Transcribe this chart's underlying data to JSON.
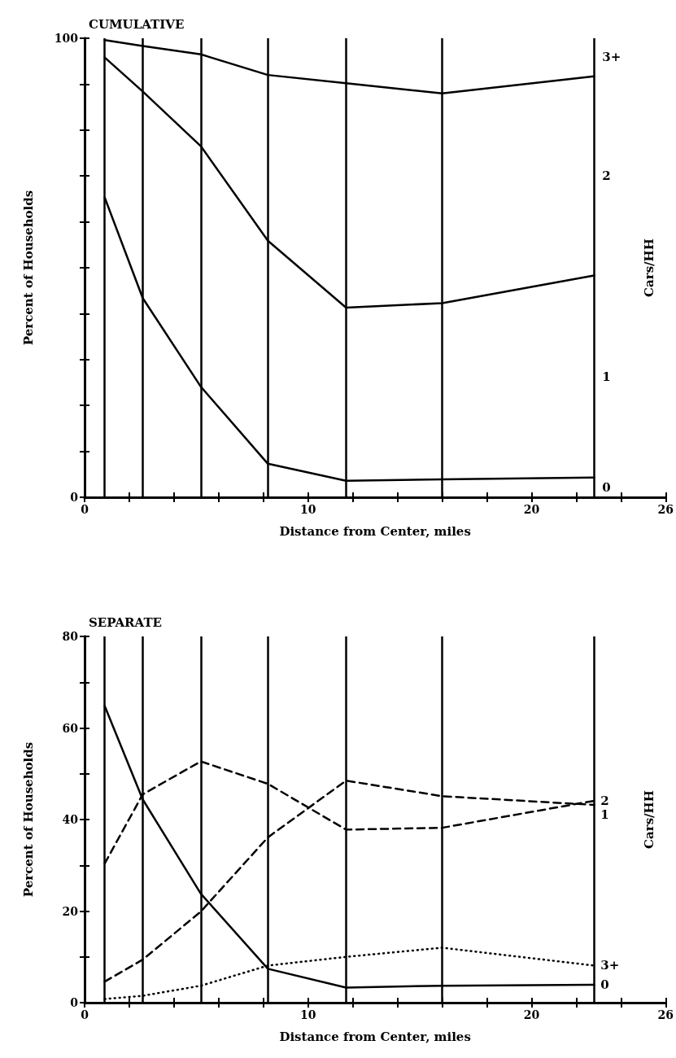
{
  "chart_data": [
    {
      "type": "line",
      "title": "CUMULATIVE",
      "xlabel": "Distance from Center, miles",
      "ylabel": "Percent of Households",
      "y2label": "Cars/HH",
      "x": [
        0.9,
        2.6,
        5.2,
        8.2,
        11.7,
        16.0,
        22.8
      ],
      "series": [
        {
          "color": "#000000",
          "values": [
            99.6,
            98.3,
            96.5,
            92.0,
            90.2,
            88.0,
            91.7
          ]
        },
        {
          "color": "#000000",
          "values": [
            95.8,
            88.4,
            76.5,
            55.9,
            41.3,
            42.3,
            48.3
          ]
        },
        {
          "color": "#000000",
          "values": [
            65.3,
            43.4,
            24.1,
            7.3,
            3.6,
            3.9,
            4.3
          ]
        }
      ],
      "xlim": [
        0,
        26
      ],
      "xticks": [
        0,
        {
          "value": 2,
          "label": null
        },
        {
          "value": 4,
          "label": null
        },
        {
          "value": 6,
          "label": null
        },
        {
          "value": 8,
          "label": null
        },
        10,
        {
          "value": 12,
          "label": null
        },
        {
          "value": 14,
          "label": null
        },
        {
          "value": 16,
          "label": null
        },
        {
          "value": 18,
          "label": null
        },
        20,
        {
          "value": 22,
          "label": null
        },
        {
          "value": 24,
          "label": null
        },
        26
      ],
      "ylim": [
        0,
        100
      ],
      "yticks": [
        0,
        {
          "value": 10,
          "label": null
        },
        {
          "value": 20,
          "label": null
        },
        {
          "value": 30,
          "label": null
        },
        {
          "value": 40,
          "label": null
        },
        {
          "value": 50,
          "label": null
        },
        {
          "value": 60,
          "label": null
        },
        {
          "value": 70,
          "label": null
        },
        {
          "value": 80,
          "label": null
        },
        {
          "value": 90,
          "label": null
        },
        100
      ],
      "ref_lines": [
        {
          "axis": "x",
          "value": 0.9,
          "color": "#000000"
        },
        {
          "axis": "x",
          "value": 2.6,
          "color": "#000000"
        },
        {
          "axis": "x",
          "value": 5.2,
          "color": "#000000"
        },
        {
          "axis": "x",
          "value": 8.2,
          "color": "#000000"
        },
        {
          "axis": "x",
          "value": 11.7,
          "color": "#000000"
        },
        {
          "axis": "x",
          "value": 16.0,
          "color": "#000000"
        },
        {
          "axis": "x",
          "value": 22.8,
          "color": "#000000"
        }
      ],
      "annotations": [
        "3+",
        "2",
        "1",
        "0"
      ],
      "line_style": "solid"
    },
    {
      "type": "line",
      "title": "SEPARATE",
      "xlabel": "Distance from Center, miles",
      "ylabel": "Percent of Households",
      "y2label": "Cars/HH",
      "x": [
        0.9,
        2.6,
        5.2,
        8.2,
        11.7,
        16.0,
        22.8
      ],
      "series": [
        {
          "name": "0",
          "color": "#000000",
          "line_style": "solid",
          "values": [
            64.8,
            44.4,
            23.8,
            7.4,
            3.3,
            3.7,
            3.9
          ]
        },
        {
          "name": "1",
          "color": "#000000",
          "line_style": "dashed",
          "values": [
            4.6,
            9.4,
            19.9,
            36.1,
            48.5,
            45.1,
            43.2
          ]
        },
        {
          "name": "2",
          "color": "#000000",
          "line_style": "dashed",
          "values": [
            30.4,
            45.5,
            52.7,
            47.8,
            37.8,
            38.2,
            44.1
          ]
        },
        {
          "name": "3+",
          "color": "#000000",
          "line_style": "dotted",
          "values": [
            0.8,
            1.5,
            3.7,
            8.1,
            10.0,
            12.0,
            8.1
          ]
        }
      ],
      "xlim": [
        0,
        26
      ],
      "xticks": [
        0,
        {
          "value": 2,
          "label": null
        },
        {
          "value": 4,
          "label": null
        },
        {
          "value": 6,
          "label": null
        },
        {
          "value": 8,
          "label": null
        },
        10,
        {
          "value": 12,
          "label": null
        },
        {
          "value": 14,
          "label": null
        },
        {
          "value": 16,
          "label": null
        },
        {
          "value": 18,
          "label": null
        },
        20,
        {
          "value": 22,
          "label": null
        },
        {
          "value": 24,
          "label": null
        },
        26
      ],
      "ylim": [
        0,
        80
      ],
      "yticks": [
        0,
        {
          "value": 10,
          "label": null
        },
        20,
        {
          "value": 30,
          "label": null
        },
        40,
        {
          "value": 50,
          "label": null
        },
        60,
        {
          "value": 70,
          "label": null
        },
        80
      ],
      "ref_lines": [
        {
          "axis": "x",
          "value": 0.9,
          "color": "#000000"
        },
        {
          "axis": "x",
          "value": 2.6,
          "color": "#000000"
        },
        {
          "axis": "x",
          "value": 5.2,
          "color": "#000000"
        },
        {
          "axis": "x",
          "value": 8.2,
          "color": "#000000"
        },
        {
          "axis": "x",
          "value": 11.7,
          "color": "#000000"
        },
        {
          "axis": "x",
          "value": 16.0,
          "color": "#000000"
        },
        {
          "axis": "x",
          "value": 22.8,
          "color": "#000000"
        }
      ]
    }
  ]
}
